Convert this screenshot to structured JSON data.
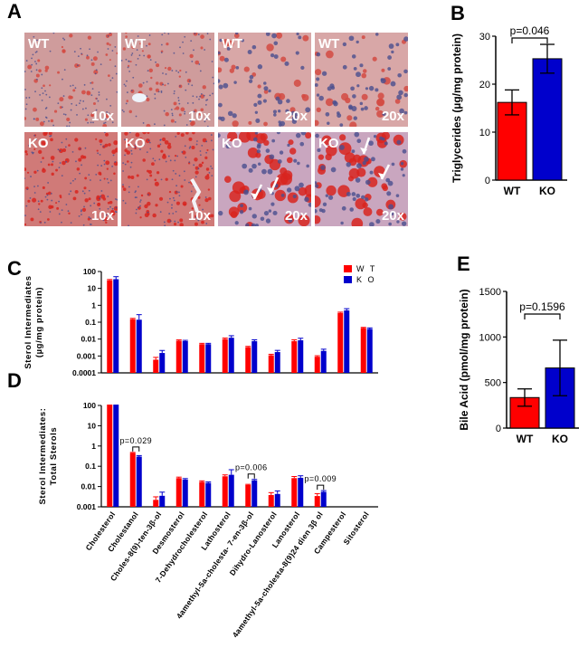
{
  "panel_letters": [
    "A",
    "B",
    "C",
    "D",
    "E"
  ],
  "micrographs": [
    {
      "group": "WT",
      "magnification": "10x"
    },
    {
      "group": "WT",
      "magnification": "10x"
    },
    {
      "group": "WT",
      "magnification": "20x"
    },
    {
      "group": "WT",
      "magnification": "20x"
    },
    {
      "group": "KO",
      "magnification": "10x"
    },
    {
      "group": "KO",
      "magnification": "10x"
    },
    {
      "group": "KO",
      "magnification": "20x"
    },
    {
      "group": "KO",
      "magnification": "20x"
    }
  ],
  "chart_data": [
    {
      "panel": "B",
      "type": "bar",
      "categories": [
        "WT",
        "KO"
      ],
      "values": [
        16.2,
        25.3
      ],
      "errors": [
        2.6,
        3.0
      ],
      "colors": [
        "#ff0000",
        "#0000cc"
      ],
      "ylabel": "Triglycerides (µg/mg protein)",
      "ylim": [
        0,
        30
      ],
      "yticks": [
        "0",
        "10",
        "20",
        "30"
      ],
      "annotation": "p=0.046"
    },
    {
      "panel": "C",
      "type": "bar",
      "scale": "log",
      "ylabel_lines": [
        "Sterol Intermediates",
        "(µg/mg protein)"
      ],
      "ylim": [
        0.0001,
        100
      ],
      "yticks": [
        "0.0001",
        "0.001",
        "0.01",
        "0.1",
        "1",
        "10",
        "100"
      ],
      "legend_position": "top-right",
      "legend": [
        {
          "name": "W T",
          "color": "#ff0000"
        },
        {
          "name": "K O",
          "color": "#0000cc"
        }
      ],
      "series": [
        {
          "name": "W T",
          "color": "#ff0000",
          "values": [
            30,
            0.15,
            0.0006,
            0.008,
            0.005,
            0.01,
            0.0033,
            0.0011,
            0.0075,
            0.0009,
            0.35,
            0.045
          ],
          "errors": [
            0.05,
            0.05,
            0.14,
            0.05,
            0.05,
            0.06,
            0.05,
            0.06,
            0.08,
            0.06,
            0.05,
            0.04
          ]
        },
        {
          "name": "K O",
          "color": "#0000cc",
          "values": [
            35,
            0.14,
            0.0015,
            0.0075,
            0.005,
            0.012,
            0.0075,
            0.0017,
            0.0085,
            0.002,
            0.5,
            0.04
          ],
          "errors": [
            0.15,
            0.3,
            0.15,
            0.05,
            0.05,
            0.12,
            0.08,
            0.1,
            0.12,
            0.1,
            0.1,
            0.06
          ]
        }
      ]
    },
    {
      "panel": "D",
      "type": "bar",
      "scale": "log",
      "ylabel_lines": [
        "Sterol Intermediates:",
        "Total Sterols"
      ],
      "ylim": [
        0.001,
        100
      ],
      "yticks": [
        "0.001",
        "0.01",
        "0.1",
        "1",
        "10",
        "100"
      ],
      "categories": [
        "Cholesterol",
        "Cholestanol",
        "Choles-8(9)-ten-3β-ol",
        "Desmosterol",
        "7-Dehydrocholesterol",
        "Lathosterol",
        "4amethyl-5a-cholesta- 7-en-3β-ol",
        "Dihydro-Lanosterol",
        "Lanosterol",
        "4amethyl-5a-cholesta-8(9)24 dien 3β ol",
        "Campesterol",
        "Sitosterol"
      ],
      "series": [
        {
          "name": "W T",
          "color": "#ff0000",
          "values": [
            100,
            0.45,
            0.0022,
            0.026,
            0.017,
            0.032,
            0.012,
            0.0038,
            0.026,
            0.0034,
            null,
            null
          ],
          "errors": [
            0.02,
            0.03,
            0.15,
            0.05,
            0.05,
            0.07,
            0.03,
            0.12,
            0.08,
            0.12,
            0,
            0
          ]
        },
        {
          "name": "K O",
          "color": "#0000cc",
          "values": [
            100,
            0.3,
            0.0035,
            0.022,
            0.015,
            0.038,
            0.02,
            0.0043,
            0.027,
            0.0055,
            null,
            null
          ],
          "errors": [
            0.02,
            0.05,
            0.18,
            0.05,
            0.05,
            0.25,
            0.05,
            0.15,
            0.1,
            0.06,
            0,
            0
          ]
        }
      ],
      "annotations": [
        {
          "text": "p=0.029",
          "category": 1
        },
        {
          "text": "p=0.006",
          "category": 6
        },
        {
          "text": "p=0.009",
          "category": 9
        }
      ]
    },
    {
      "panel": "E",
      "type": "bar",
      "categories": [
        "WT",
        "KO"
      ],
      "values": [
        335,
        660
      ],
      "errors": [
        95,
        305
      ],
      "colors": [
        "#ff0000",
        "#0000cc"
      ],
      "ylabel": "Bile Acid (pmol/mg protein)",
      "ylim": [
        0,
        1500
      ],
      "yticks": [
        "0",
        "500",
        "1000",
        "1500"
      ],
      "annotation": "p=0.1596"
    }
  ]
}
